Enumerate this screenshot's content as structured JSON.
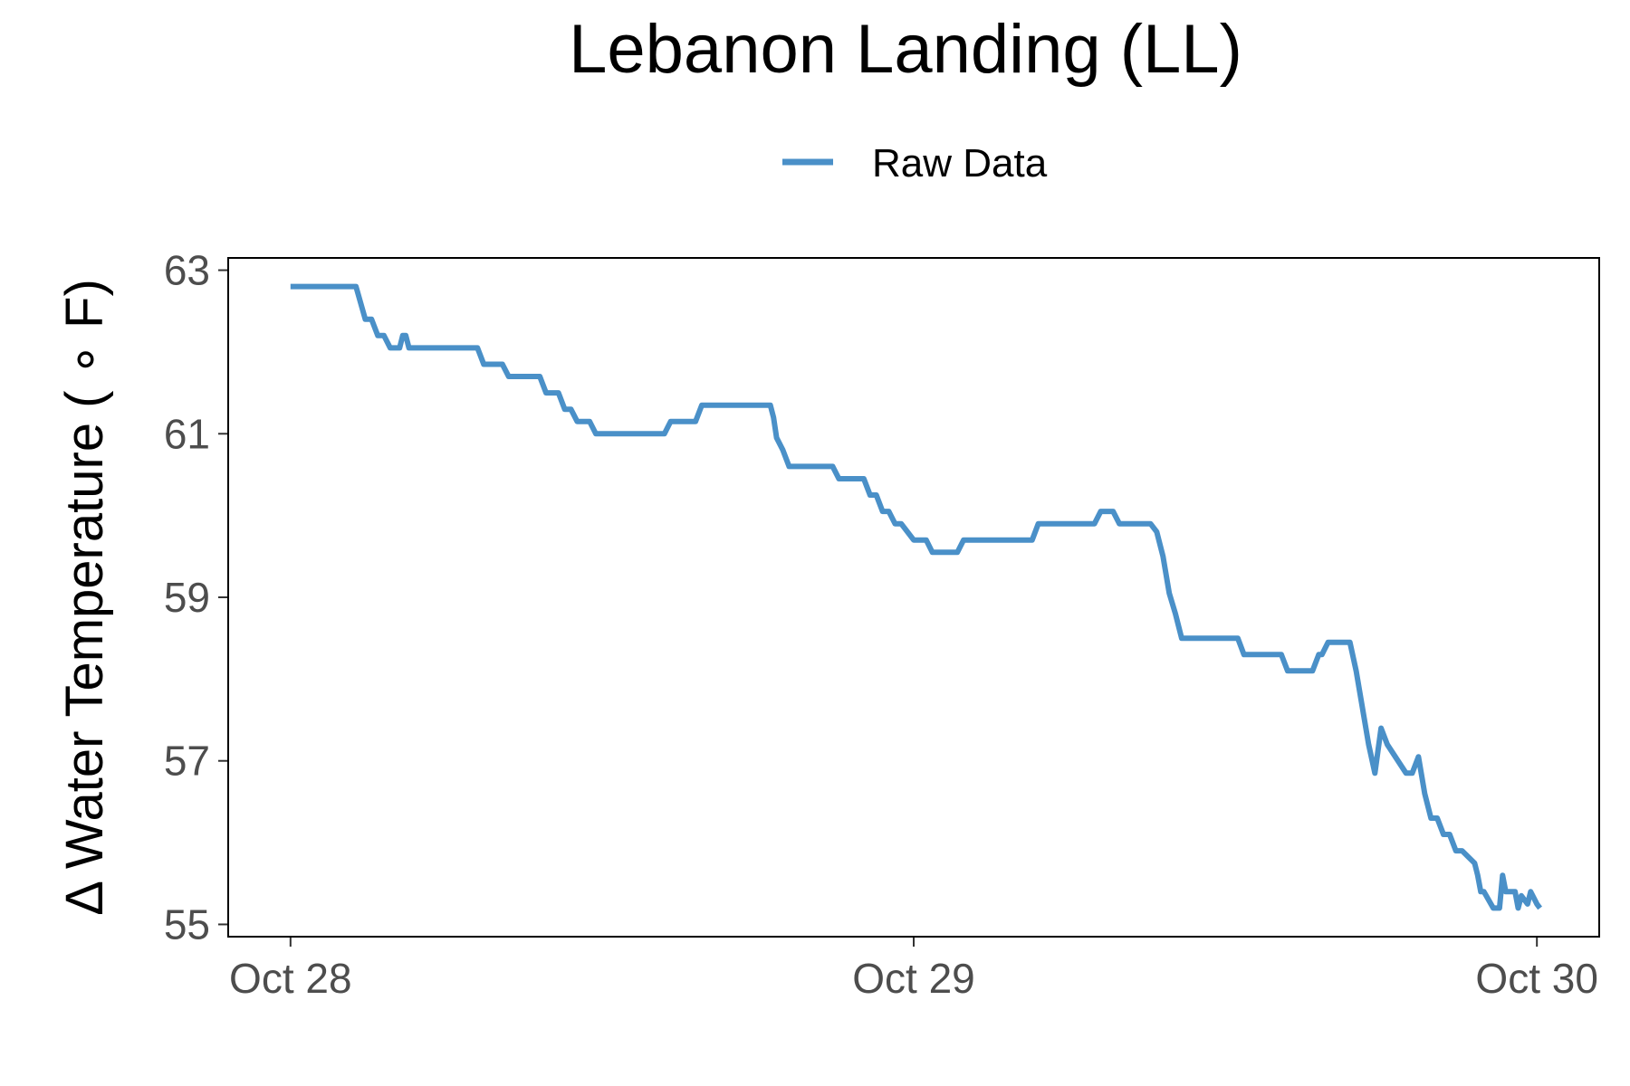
{
  "chart_data": {
    "type": "line",
    "title": "Lebanon Landing (LL)",
    "ylabel": "Δ Water Temperature ( ∘ F)",
    "xlabel": "",
    "legend_position": "top",
    "grid": false,
    "x_tick_labels": [
      "Oct 28",
      "Oct 29",
      "Oct 30"
    ],
    "y_ticks": [
      55,
      57,
      59,
      61,
      63
    ],
    "xlim": [
      -0.1,
      2.1
    ],
    "ylim": [
      54.85,
      63.15
    ],
    "series": [
      {
        "name": "Raw Data",
        "color": "#4a90c8",
        "x": [
          0.0,
          0.1,
          0.105,
          0.12,
          0.13,
          0.14,
          0.15,
          0.16,
          0.165,
          0.175,
          0.18,
          0.185,
          0.19,
          0.2,
          0.3,
          0.31,
          0.34,
          0.35,
          0.4,
          0.41,
          0.43,
          0.44,
          0.45,
          0.46,
          0.48,
          0.49,
          0.6,
          0.61,
          0.65,
          0.66,
          0.77,
          0.775,
          0.78,
          0.79,
          0.8,
          0.81,
          0.87,
          0.88,
          0.92,
          0.93,
          0.94,
          0.95,
          0.96,
          0.97,
          0.98,
          1.0,
          1.01,
          1.02,
          1.03,
          1.05,
          1.06,
          1.07,
          1.08,
          1.12,
          1.13,
          1.14,
          1.19,
          1.2,
          1.215,
          1.23,
          1.24,
          1.25,
          1.29,
          1.3,
          1.32,
          1.33,
          1.34,
          1.35,
          1.38,
          1.39,
          1.4,
          1.41,
          1.42,
          1.43,
          1.47,
          1.48,
          1.52,
          1.53,
          1.55,
          1.56,
          1.57,
          1.58,
          1.59,
          1.6,
          1.64,
          1.65,
          1.655,
          1.665,
          1.675,
          1.685,
          1.7,
          1.71,
          1.73,
          1.74,
          1.75,
          1.76,
          1.79,
          1.8,
          1.81,
          1.82,
          1.83,
          1.84,
          1.85,
          1.86,
          1.87,
          1.88,
          1.9,
          1.905,
          1.91,
          1.915,
          1.93,
          1.94,
          1.945,
          1.95,
          1.955,
          1.96,
          1.965,
          1.97,
          1.975,
          1.985,
          1.99,
          2.0,
          2.005
        ],
        "y": [
          62.8,
          62.8,
          62.8,
          62.4,
          62.4,
          62.2,
          62.2,
          62.05,
          62.05,
          62.05,
          62.2,
          62.2,
          62.05,
          62.05,
          62.05,
          61.85,
          61.85,
          61.7,
          61.7,
          61.5,
          61.5,
          61.3,
          61.3,
          61.15,
          61.15,
          61.0,
          61.0,
          61.15,
          61.15,
          61.35,
          61.35,
          61.2,
          60.95,
          60.8,
          60.6,
          60.6,
          60.6,
          60.45,
          60.45,
          60.25,
          60.25,
          60.05,
          60.05,
          59.9,
          59.9,
          59.7,
          59.7,
          59.7,
          59.55,
          59.55,
          59.55,
          59.55,
          59.7,
          59.7,
          59.7,
          59.7,
          59.7,
          59.9,
          59.9,
          59.9,
          59.9,
          59.9,
          59.9,
          60.05,
          60.05,
          59.9,
          59.9,
          59.9,
          59.9,
          59.8,
          59.5,
          59.05,
          58.8,
          58.5,
          58.5,
          58.5,
          58.5,
          58.3,
          58.3,
          58.3,
          58.3,
          58.3,
          58.3,
          58.1,
          58.1,
          58.3,
          58.3,
          58.45,
          58.45,
          58.45,
          58.45,
          58.1,
          57.2,
          56.85,
          57.4,
          57.2,
          56.85,
          56.85,
          57.05,
          56.6,
          56.3,
          56.3,
          56.1,
          56.1,
          55.9,
          55.9,
          55.75,
          55.6,
          55.4,
          55.4,
          55.2,
          55.2,
          55.6,
          55.4,
          55.4,
          55.4,
          55.4,
          55.2,
          55.35,
          55.25,
          55.4,
          55.25,
          55.2
        ],
        "__xs": [
          0.0,
          0.1,
          0.105,
          0.12,
          0.13,
          0.14,
          0.15,
          0.16,
          0.165,
          0.175,
          0.18,
          0.185,
          0.19,
          0.2,
          0.3,
          0.31,
          0.34,
          0.35,
          0.4,
          0.41,
          0.43,
          0.44,
          0.45,
          0.46,
          0.48,
          0.49,
          0.6,
          0.61,
          0.65,
          0.66,
          0.77,
          0.775,
          0.78,
          0.79,
          0.8,
          0.81,
          0.87,
          0.88,
          0.92,
          0.93,
          0.94,
          0.95,
          0.96,
          0.97,
          0.98,
          1.0,
          1.01,
          1.02,
          1.03,
          1.05,
          1.06,
          1.07,
          1.08,
          1.12,
          1.13,
          1.14,
          1.19,
          1.2,
          1.215,
          1.23,
          1.24,
          1.25,
          1.29,
          1.3,
          1.32,
          1.33,
          1.34,
          1.35,
          1.38,
          1.39,
          1.4,
          1.41,
          1.42,
          1.43,
          1.47,
          1.48,
          1.52,
          1.53,
          1.55,
          1.56,
          1.57,
          1.58,
          1.59,
          1.6,
          1.64,
          1.65,
          1.655,
          1.665,
          1.675,
          1.685,
          1.7,
          1.71,
          1.73,
          1.74,
          1.75,
          1.76,
          1.79,
          1.8,
          1.81,
          1.82,
          1.83,
          1.84,
          1.85,
          1.86,
          1.87,
          1.88,
          1.9,
          1.905,
          1.91,
          1.915,
          1.93,
          1.94,
          1.945,
          1.95,
          1.955,
          1.96,
          1.965,
          1.97,
          1.975,
          1.985,
          1.99,
          2.0,
          2.005
        ]
      }
    ]
  }
}
